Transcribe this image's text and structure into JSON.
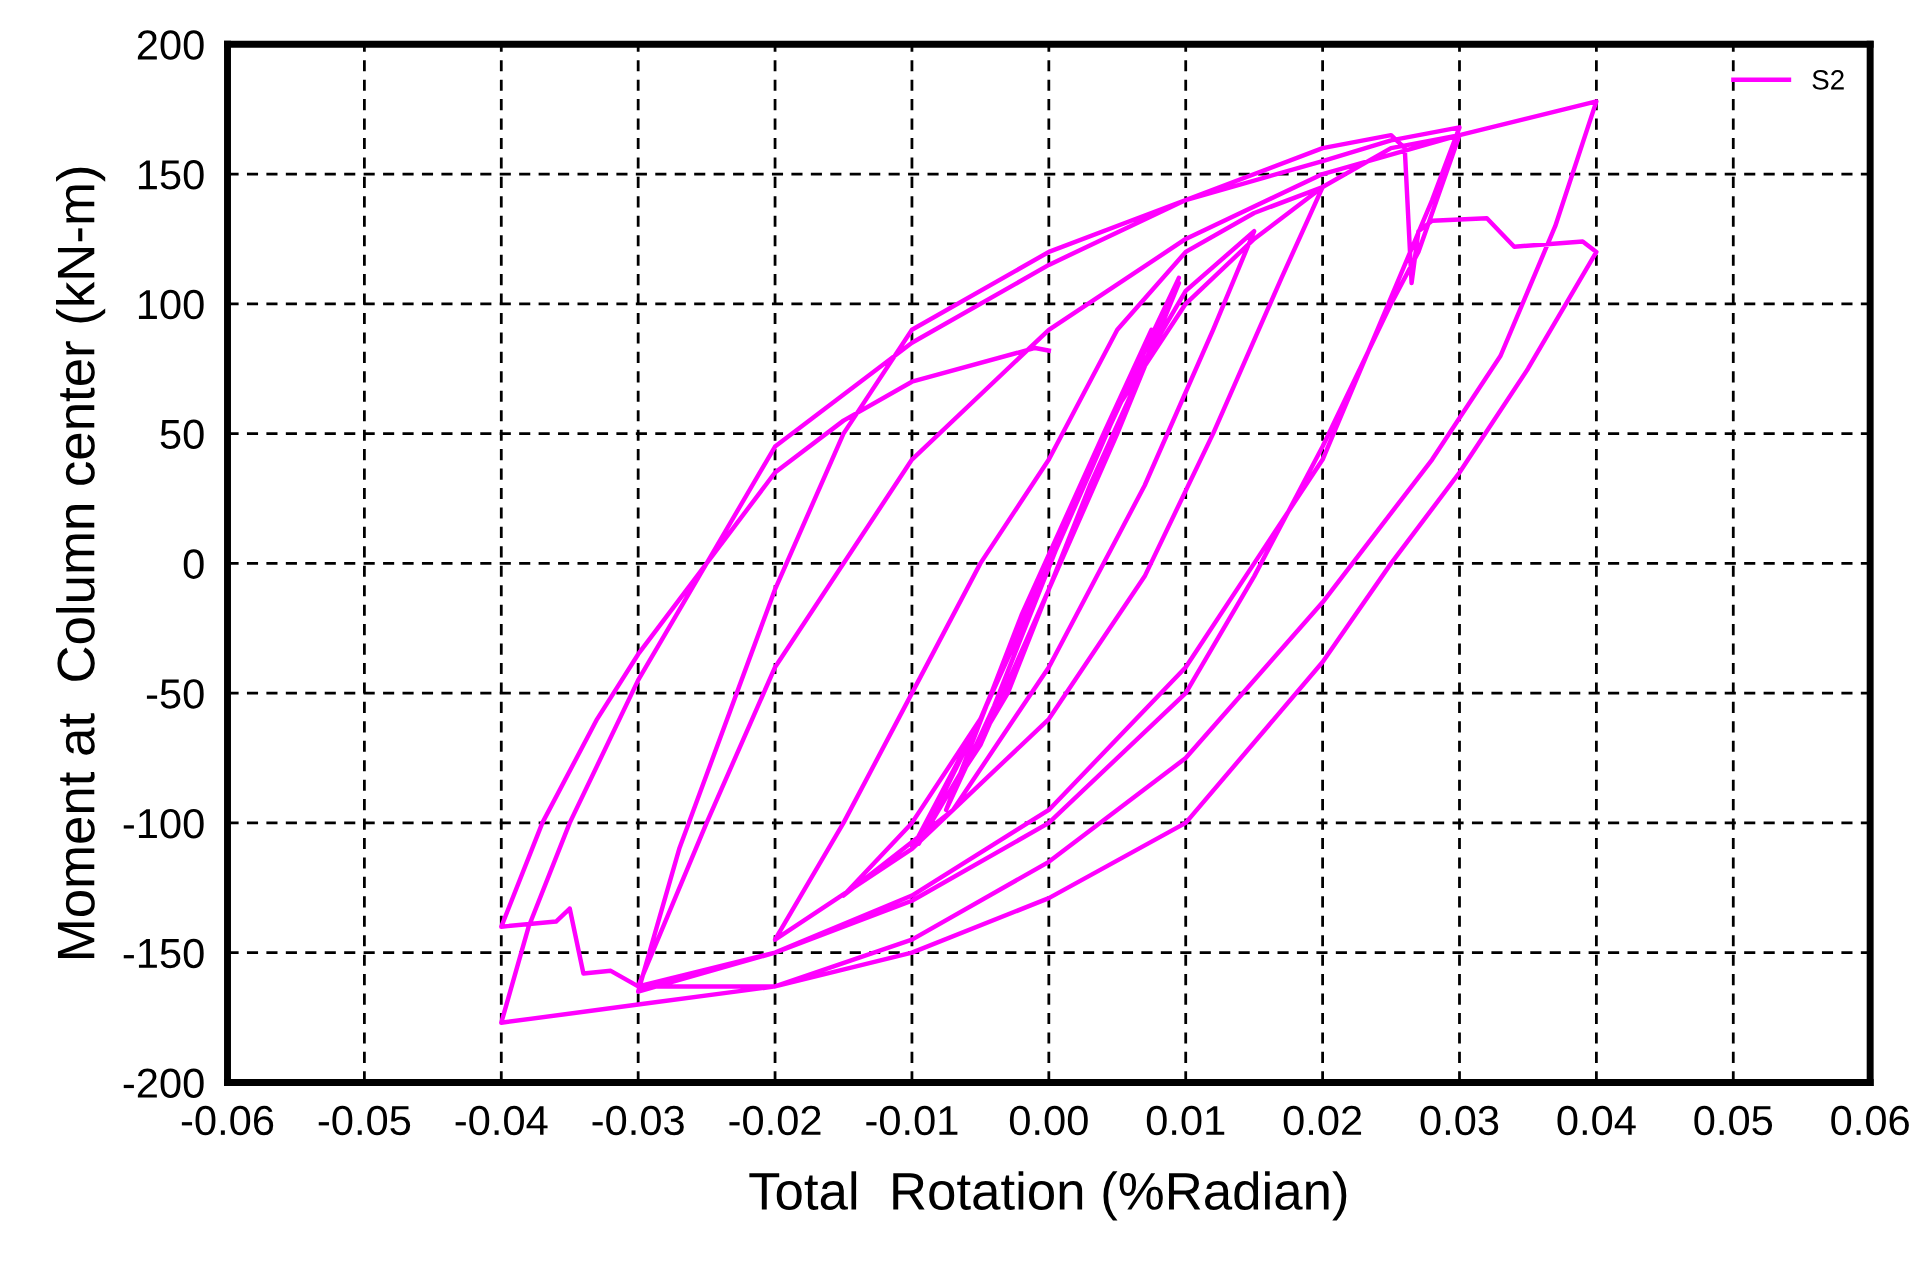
{
  "chart_data": {
    "type": "line",
    "xlabel": "Total  Rotation (%Radian)",
    "ylabel": "Moment at  Column center (kN-m)",
    "xlim": [
      -0.06,
      0.06
    ],
    "ylim": [
      -200,
      200
    ],
    "xticks": [
      {
        "value": -0.06,
        "label": "-0.06"
      },
      {
        "value": -0.05,
        "label": "-0.05"
      },
      {
        "value": -0.04,
        "label": "-0.04"
      },
      {
        "value": -0.03,
        "label": "-0.03"
      },
      {
        "value": -0.02,
        "label": "-0.02"
      },
      {
        "value": -0.01,
        "label": "-0.01"
      },
      {
        "value": 0,
        "label": "0.00"
      },
      {
        "value": 0.01,
        "label": "0.01"
      },
      {
        "value": 0.02,
        "label": "0.02"
      },
      {
        "value": 0.03,
        "label": "0.03"
      },
      {
        "value": 0.04,
        "label": "0.04"
      },
      {
        "value": 0.05,
        "label": "0.05"
      },
      {
        "value": 0.06,
        "label": "0.06"
      }
    ],
    "yticks": [
      -200,
      -150,
      -100,
      -50,
      0,
      50,
      100,
      150,
      200
    ],
    "grid": true,
    "legend": "top right",
    "marker": "none",
    "line_style": "solid",
    "series": [
      {
        "name": "S2",
        "color": "#ff00ff",
        "x": [
          0,
          0.003,
          0.005,
          0.002,
          -0.003,
          -0.005,
          -0.002,
          0.003,
          0.0075,
          0.004,
          -0.002,
          -0.0075,
          -0.004,
          0.002,
          0.0095,
          0.005,
          0,
          -0.005,
          -0.01,
          -0.005,
          0,
          0.005,
          0.0095,
          0.006,
          0.003,
          -0.003,
          -0.0095,
          -0.005,
          0,
          0.005,
          0.01,
          0.015,
          0.012,
          0.007,
          0,
          -0.007,
          -0.015,
          -0.01,
          -0.005,
          0,
          0.005,
          0.01,
          0.015,
          0.02,
          0.017,
          0.012,
          0.007,
          0,
          -0.01,
          -0.02,
          -0.015,
          -0.01,
          -0.005,
          0,
          0.005,
          0.01,
          0.015,
          0.02,
          0.025,
          0.03,
          0.027,
          0.025,
          0.02,
          0.015,
          0.01,
          0,
          -0.01,
          -0.02,
          -0.03,
          -0.027,
          -0.02,
          -0.015,
          -0.01,
          0,
          0.01,
          0.02,
          0.025,
          0.03,
          0.028,
          0.024,
          0.02,
          0.015,
          0.01,
          0,
          -0.01,
          -0.02,
          -0.03,
          -0.025,
          -0.02,
          -0.01,
          0,
          0.01,
          0.02,
          0.03,
          0.04,
          0.037,
          0.033,
          0.028,
          0.02,
          0.01,
          0,
          -0.01,
          -0.02,
          -0.03,
          -0.04,
          -0.038,
          -0.035,
          -0.03,
          -0.025,
          -0.02,
          -0.01,
          0,
          0.01,
          0.02,
          0.025,
          0.026,
          0.0265,
          0.027,
          0.028,
          0.032,
          0.034,
          0.039,
          0.04,
          0.035,
          0.03,
          0.025,
          0.02,
          0.01,
          0,
          -0.01,
          -0.02,
          -0.03,
          -0.031,
          -0.032,
          -0.034,
          -0.035,
          -0.036,
          -0.04,
          -0.037,
          -0.033,
          -0.03,
          -0.025,
          -0.02,
          -0.015,
          -0.01,
          -0.001,
          0
        ],
        "values": [
          0,
          35,
          60,
          25,
          -35,
          -60,
          -25,
          35,
          90,
          50,
          -20,
          -95,
          -55,
          25,
          110,
          60,
          0,
          -60,
          -110,
          -70,
          -10,
          50,
          108,
          65,
          30,
          -50,
          -108,
          -60,
          0,
          60,
          105,
          128,
          90,
          30,
          -40,
          -95,
          -128,
          -100,
          -60,
          0,
          60,
          100,
          125,
          145,
          110,
          50,
          -5,
          -60,
          -110,
          -145,
          -100,
          -50,
          0,
          40,
          90,
          120,
          135,
          145,
          160,
          165,
          120,
          100,
          45,
          -5,
          -50,
          -100,
          -130,
          -150,
          -165,
          -110,
          -10,
          50,
          90,
          120,
          140,
          155,
          163,
          168,
          140,
          90,
          40,
          0,
          -40,
          -95,
          -128,
          -150,
          -163,
          -100,
          -40,
          40,
          90,
          125,
          150,
          165,
          178,
          130,
          80,
          40,
          -15,
          -75,
          -115,
          -145,
          -163,
          -170,
          -177,
          -140,
          -100,
          -45,
          0,
          45,
          85,
          115,
          140,
          160,
          165,
          160,
          108,
          128,
          132,
          133,
          122,
          124,
          120,
          75,
          35,
          0,
          -38,
          -100,
          -129,
          -150,
          -163,
          -163,
          -160,
          -157,
          -158,
          -133,
          -138,
          -140,
          -100,
          -60,
          -35,
          0,
          35,
          55,
          70,
          83,
          82
        ]
      }
    ]
  }
}
